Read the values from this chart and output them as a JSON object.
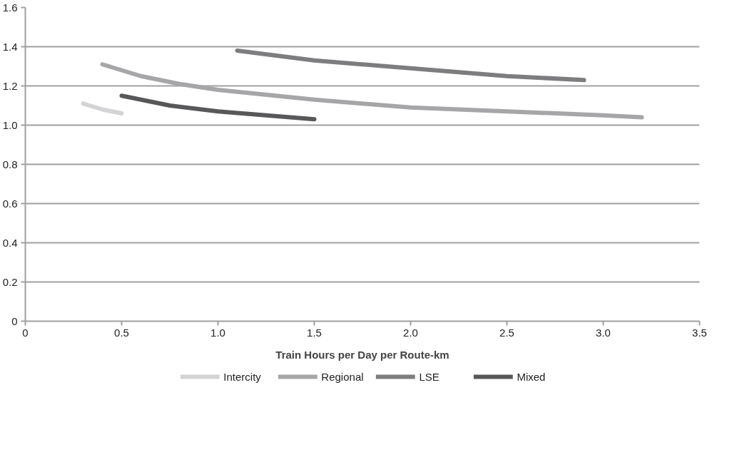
{
  "chart_data": {
    "type": "line",
    "xlabel": "Train Hours per Day per Route-km",
    "xlim": [
      0,
      3.5
    ],
    "ylim": [
      0,
      1.6
    ],
    "xticks": [
      0,
      {
        "value": 0.5,
        "label": "0.5"
      },
      {
        "value": 1,
        "label": "1.0"
      },
      {
        "value": 1.5,
        "label": "1.5"
      },
      {
        "value": 2,
        "label": "2.0"
      },
      {
        "value": 2.5,
        "label": "2.5"
      },
      {
        "value": 3,
        "label": "3.0"
      },
      {
        "value": 3.5,
        "label": "3.5"
      }
    ],
    "yticks": [
      0,
      0.2,
      0.4,
      0.6,
      0.8,
      {
        "value": 1,
        "label": "1.0"
      },
      1.2,
      1.4,
      1.6
    ],
    "grid": "y",
    "legend": "bottom",
    "marker": "none",
    "line_style": "solid",
    "series": [
      {
        "name": "Intercity",
        "color": "#d4d4d6",
        "x": [
          0.3,
          0.4,
          0.5
        ],
        "values": [
          1.11,
          1.08,
          1.06
        ]
      },
      {
        "name": "Regional",
        "color": "#a6a6a9",
        "x": [
          0.4,
          0.6,
          0.8,
          1.0,
          1.5,
          2.0,
          2.5,
          3.0,
          3.2
        ],
        "values": [
          1.31,
          1.25,
          1.21,
          1.18,
          1.13,
          1.09,
          1.07,
          1.05,
          1.04
        ]
      },
      {
        "name": "LSE",
        "color": "#7d7d80",
        "x": [
          1.1,
          1.5,
          2.0,
          2.5,
          2.9
        ],
        "values": [
          1.38,
          1.33,
          1.29,
          1.25,
          1.23
        ]
      },
      {
        "name": "Mixed",
        "color": "#58585a",
        "x": [
          0.5,
          0.75,
          1.0,
          1.25,
          1.5
        ],
        "values": [
          1.15,
          1.1,
          1.07,
          1.05,
          1.03
        ]
      }
    ]
  }
}
